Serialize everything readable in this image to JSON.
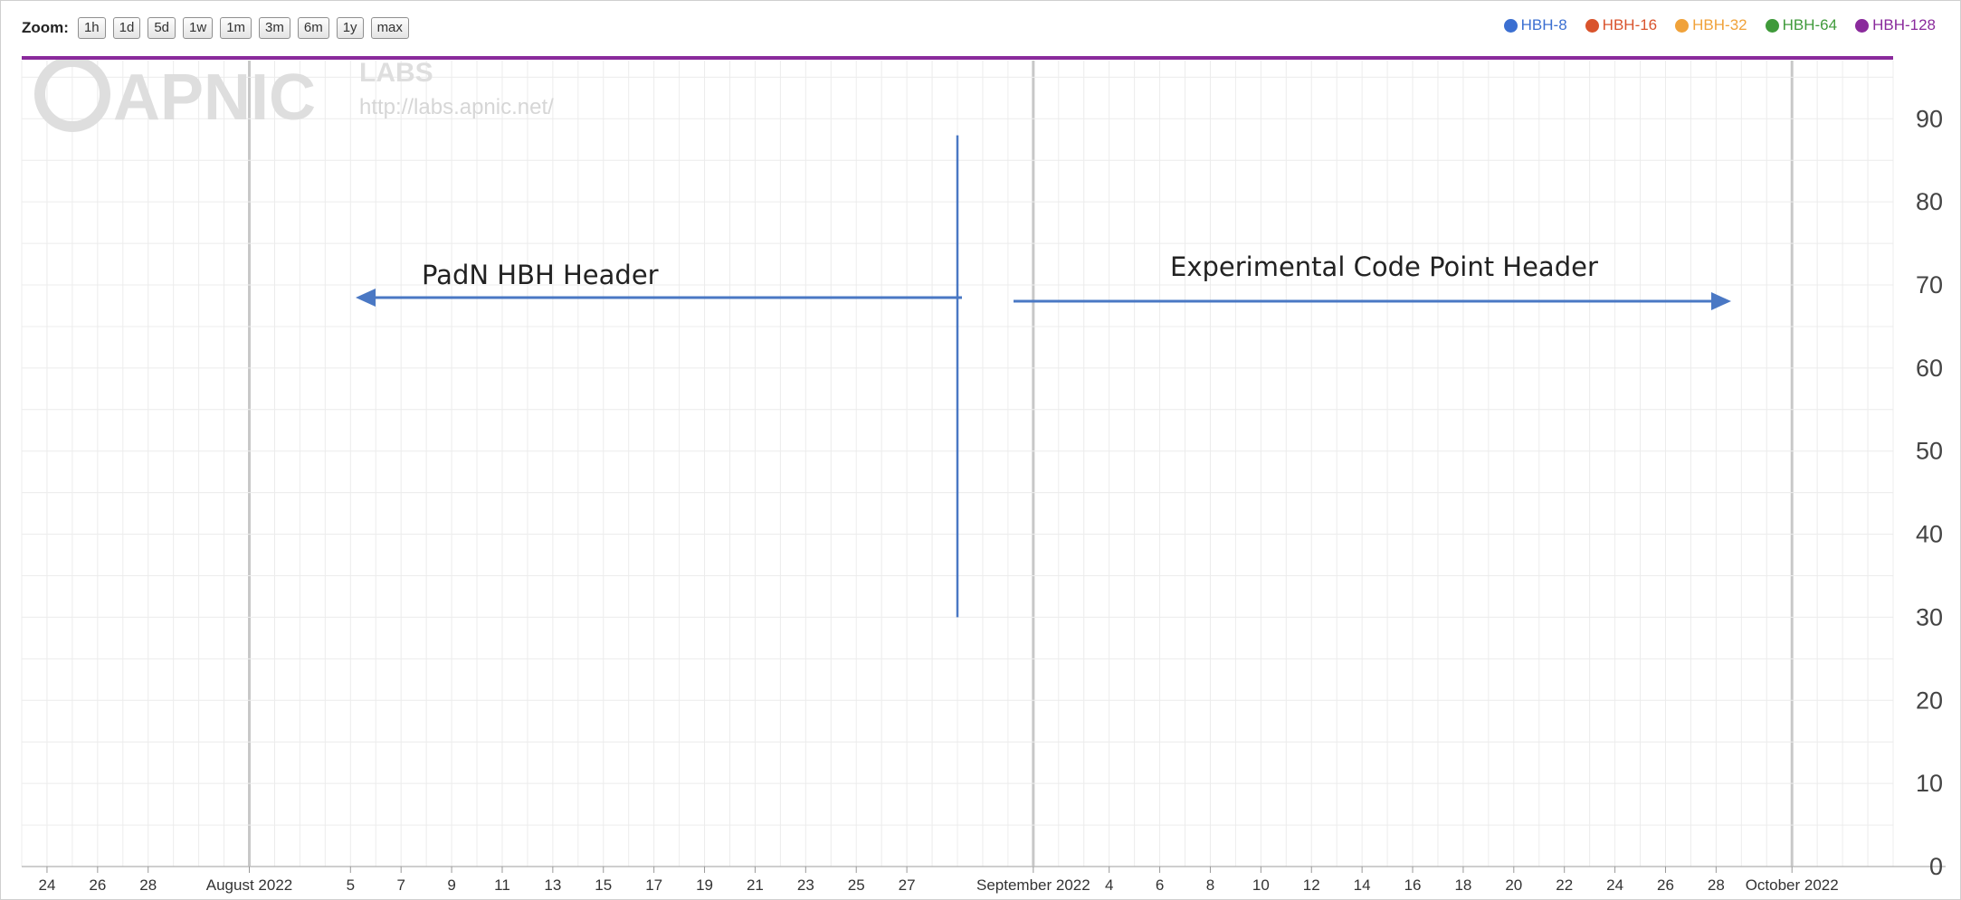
{
  "toolbar": {
    "zoom_label": "Zoom:",
    "buttons": [
      "1h",
      "1d",
      "5d",
      "1w",
      "1m",
      "3m",
      "6m",
      "1y",
      "max"
    ]
  },
  "legend": [
    {
      "name": "HBH-8",
      "color": "#3b6fd1"
    },
    {
      "name": "HBH-16",
      "color": "#d9532c"
    },
    {
      "name": "HBH-32",
      "color": "#f0a23a"
    },
    {
      "name": "HBH-64",
      "color": "#3f9a3a"
    },
    {
      "name": "HBH-128",
      "color": "#8a2a9c"
    }
  ],
  "watermark": {
    "logo_text": "APNIC",
    "labs_text": "LABS",
    "url": "http://labs.apnic.net/"
  },
  "chart_data": {
    "type": "line",
    "yaxis": {
      "ticks": [
        0,
        10,
        20,
        30,
        40,
        50,
        60,
        70,
        80,
        90
      ],
      "range": [
        0,
        97
      ],
      "position": "right"
    },
    "xaxis": {
      "range": [
        "2022-07-23",
        "2022-10-05"
      ],
      "ticks": [
        {
          "date": "2022-07-24",
          "label": "24"
        },
        {
          "date": "2022-07-26",
          "label": "26"
        },
        {
          "date": "2022-07-28",
          "label": "28"
        },
        {
          "date": "2022-08-01",
          "label": "August 2022"
        },
        {
          "date": "2022-08-05",
          "label": "5"
        },
        {
          "date": "2022-08-07",
          "label": "7"
        },
        {
          "date": "2022-08-09",
          "label": "9"
        },
        {
          "date": "2022-08-11",
          "label": "11"
        },
        {
          "date": "2022-08-13",
          "label": "13"
        },
        {
          "date": "2022-08-15",
          "label": "15"
        },
        {
          "date": "2022-08-17",
          "label": "17"
        },
        {
          "date": "2022-08-19",
          "label": "19"
        },
        {
          "date": "2022-08-21",
          "label": "21"
        },
        {
          "date": "2022-08-23",
          "label": "23"
        },
        {
          "date": "2022-08-25",
          "label": "25"
        },
        {
          "date": "2022-08-27",
          "label": "27"
        },
        {
          "date": "2022-09-01",
          "label": "September 2022"
        },
        {
          "date": "2022-09-04",
          "label": "4"
        },
        {
          "date": "2022-09-06",
          "label": "6"
        },
        {
          "date": "2022-09-08",
          "label": "8"
        },
        {
          "date": "2022-09-10",
          "label": "10"
        },
        {
          "date": "2022-09-12",
          "label": "12"
        },
        {
          "date": "2022-09-14",
          "label": "14"
        },
        {
          "date": "2022-09-16",
          "label": "16"
        },
        {
          "date": "2022-09-18",
          "label": "18"
        },
        {
          "date": "2022-09-20",
          "label": "20"
        },
        {
          "date": "2022-09-22",
          "label": "22"
        },
        {
          "date": "2022-09-24",
          "label": "24"
        },
        {
          "date": "2022-09-26",
          "label": "26"
        },
        {
          "date": "2022-09-28",
          "label": "28"
        },
        {
          "date": "2022-10-01",
          "label": "October 2022"
        }
      ]
    },
    "grid": true,
    "legend_position": "top-right",
    "series": [
      {
        "name": "HBH-8",
        "color": "#3b6fd1",
        "values": []
      },
      {
        "name": "HBH-16",
        "color": "#d9532c",
        "values": []
      },
      {
        "name": "HBH-32",
        "color": "#f0a23a",
        "values": []
      },
      {
        "name": "HBH-64",
        "color": "#3f9a3a",
        "values": []
      },
      {
        "name": "HBH-128",
        "color": "#8a2a9c",
        "values": [
          {
            "x": "2022-07-23",
            "y": 100
          },
          {
            "x": "2022-10-05",
            "y": 100
          }
        ]
      }
    ],
    "annotations": [
      {
        "text": "PadN HBH Header",
        "arrow": "left",
        "color": "#4a78c4"
      },
      {
        "text": "Experimental Code Point Header",
        "arrow": "right",
        "color": "#4a78c4"
      }
    ],
    "divider": {
      "date": "2022-08-29",
      "y_from": 30,
      "y_to": 88,
      "color": "#4a78c4"
    }
  }
}
